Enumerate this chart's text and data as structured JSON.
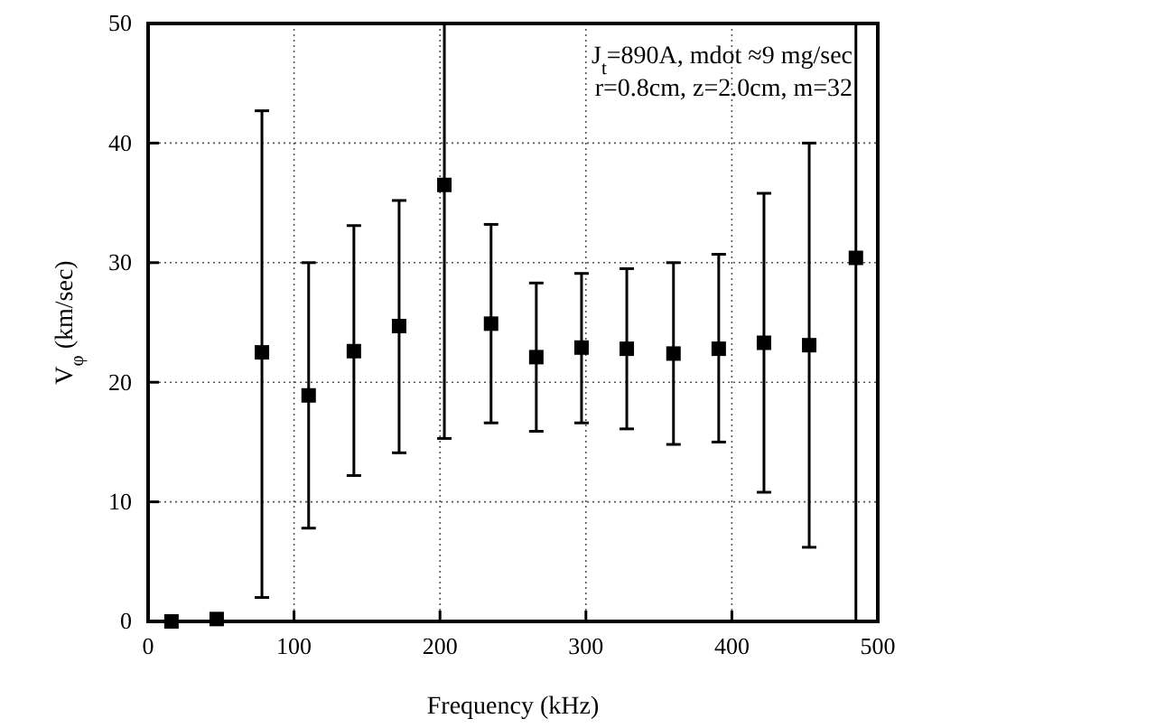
{
  "chart_data": {
    "type": "scatter",
    "xlabel": "Frequency (kHz)",
    "ylabel": "V$_{φ}$ (km/sec)",
    "x": [
      16,
      47,
      78,
      110,
      141,
      172,
      203,
      235,
      266,
      297,
      328,
      360,
      391,
      422,
      453,
      485
    ],
    "values": [
      0,
      0.2,
      22.5,
      18.9,
      22.6,
      24.7,
      36.5,
      24.9,
      22.1,
      22.9,
      22.8,
      22.4,
      22.8,
      23.3,
      23.1,
      30.4
    ],
    "errors": [
      null,
      null,
      [
        2.0,
        42.7
      ],
      [
        7.8,
        30.0
      ],
      [
        12.2,
        33.1
      ],
      [
        14.1,
        35.2
      ],
      [
        15.3,
        50
      ],
      [
        16.6,
        33.2
      ],
      [
        15.9,
        28.3
      ],
      [
        16.6,
        29.1
      ],
      [
        16.1,
        29.5
      ],
      [
        14.8,
        30.0
      ],
      [
        15.0,
        30.7
      ],
      [
        10.8,
        35.8
      ],
      [
        6.2,
        40.0
      ],
      [
        0,
        50
      ]
    ],
    "color": "#000000",
    "marker": "square",
    "xlim": [
      0,
      500
    ],
    "xticks": [
      0,
      100,
      200,
      300,
      400,
      500
    ],
    "ylim": [
      0,
      50
    ],
    "yticks": [
      0,
      10,
      20,
      30,
      40,
      50
    ],
    "grid": true,
    "annotations": [
      "J$_{t}$=890A, mdot ≈9 mg/sec",
      "r=0.8cm, z=2.0cm, m=32"
    ]
  }
}
